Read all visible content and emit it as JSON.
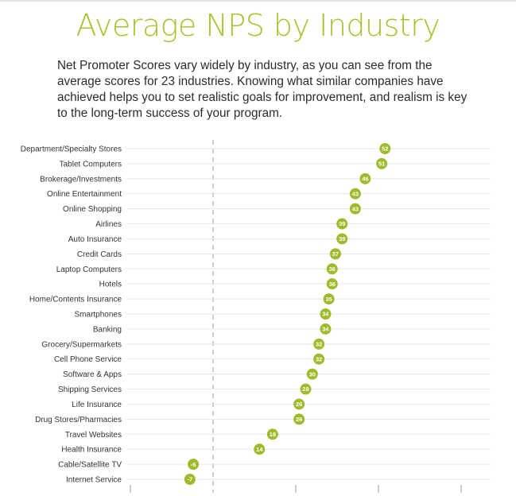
{
  "title": "Average NPS by Industry",
  "intro": "Net Promoter Scores vary widely by industry, as you can see from the average scores for 23 industries. Knowing what similar companies have achieved helps you to set realistic goals for improvement, and realism is key to the long-term success of your program.",
  "colors": {
    "title": "#a6c431",
    "dot": "#9dbb2b",
    "grid": "#e6e6e6",
    "axis": "#bdbdbd"
  },
  "chart_data": {
    "type": "scatter",
    "orientation": "horizontal",
    "title": "Average NPS by Industry",
    "categories": [
      "Department/Specialty Stores",
      "Tablet Computers",
      "Brokerage/Investments",
      "Online Entertainment",
      "Online Shopping",
      "Airlines",
      "Auto Insurance",
      "Credit Cards",
      "Laptop Computers",
      "Hotels",
      "Home/Contents Insurance",
      "Smartphones",
      "Banking",
      "Grocery/Supermarkets",
      "Cell Phone Service",
      "Software & Apps",
      "Shipping Services",
      "Life Insurance",
      "Drug Stores/Pharmacies",
      "Travel Websites",
      "Health Insurance",
      "Cable/Satellite TV",
      "Internet Service"
    ],
    "values": [
      52,
      51,
      46,
      43,
      43,
      39,
      39,
      37,
      36,
      36,
      35,
      34,
      34,
      32,
      32,
      30,
      28,
      26,
      26,
      18,
      14,
      -6,
      -7
    ],
    "xlim": [
      -25,
      82
    ],
    "xticks": [
      -25,
      0,
      25,
      50,
      75
    ],
    "tick_labels_shown": false,
    "zero_line": "dashed",
    "grid": true,
    "data_labels": true
  }
}
